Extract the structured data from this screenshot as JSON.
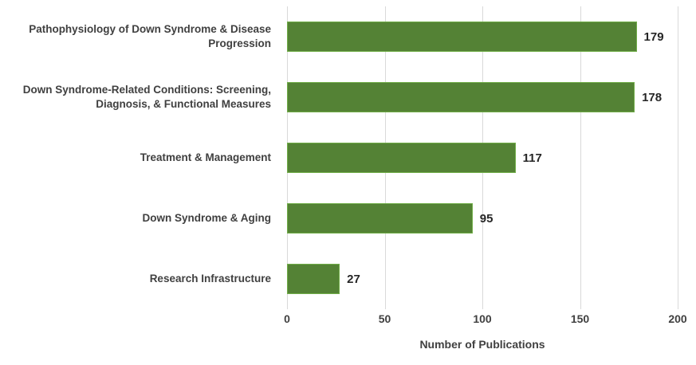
{
  "chart_data": {
    "type": "bar",
    "orientation": "horizontal",
    "title": "",
    "categories": [
      "Pathophysiology of Down Syndrome & Disease Progression",
      "Down Syndrome-Related Conditions: Screening, Diagnosis, & Functional Measures",
      "Treatment & Management",
      "Down Syndrome & Aging",
      "Research Infrastructure"
    ],
    "values": [
      179,
      178,
      117,
      95,
      27
    ],
    "xlabel": "Number of Publications",
    "ylabel": "",
    "xlim": [
      0,
      200
    ],
    "xticks": [
      0,
      50,
      100,
      150,
      200
    ],
    "grid": true,
    "legend": "none",
    "colors": {
      "bar_fill": "#548235",
      "bar_border": "#70ad47",
      "gridline": "#d9d9d9",
      "category_label": "#404040",
      "tick_label": "#404040",
      "value_label": "#262626",
      "background": "#ffffff"
    }
  }
}
